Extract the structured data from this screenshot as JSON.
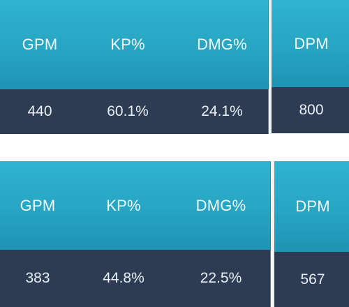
{
  "table1": {
    "headers": [
      "GPM",
      "KP%",
      "DMG%",
      "DPM"
    ],
    "values": [
      "440",
      "60.1%",
      "24.1%",
      "800"
    ]
  },
  "table2": {
    "headers": [
      "GPM",
      "KP%",
      "DMG%",
      "DPM"
    ],
    "values": [
      "383",
      "44.8%",
      "22.5%",
      "567"
    ]
  }
}
